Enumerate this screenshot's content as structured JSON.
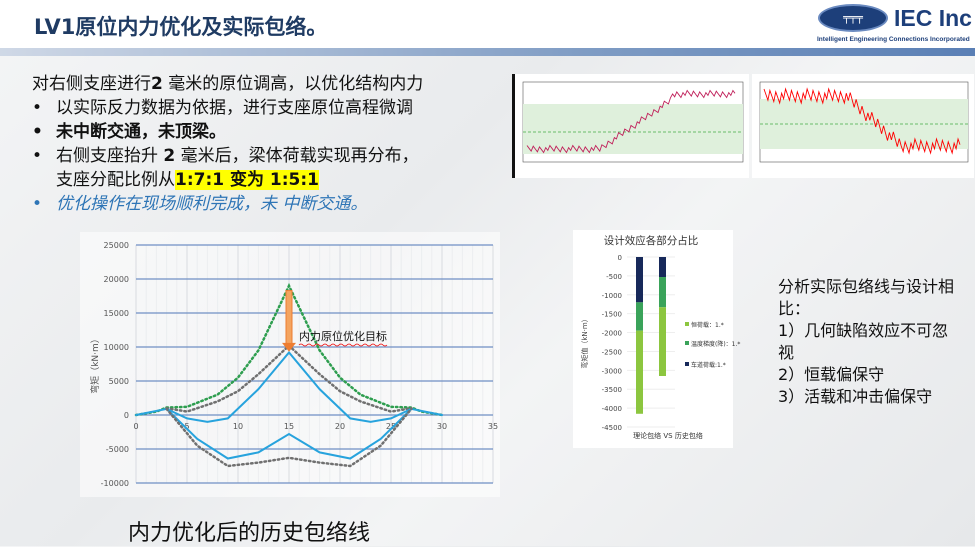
{
  "header": {
    "title": "LV1原位内力优化及实际包络。",
    "logo_text": "IEC Inc",
    "logo_sub": "Intelligent Engineering Connections Incorporated"
  },
  "body": {
    "lead_a": "对右侧支座进行",
    "lead_b": "2",
    "lead_c": " 毫米的原位调高，以优化结构内力",
    "b1": "以实际反力数据为依据，进行支座原位高程微调",
    "b2": "未中断交通，未顶梁。",
    "b3a": "右侧支座抬升 ",
    "b3b": "2",
    "b3c": " 毫米后，梁体荷载实现再分布，",
    "b3d": "支座分配比例从",
    "b3hl": "1:7:1 变为 1:5:1",
    "b4": "优化操作在现场顺利完成，未 中断交通。"
  },
  "right": {
    "l1": "分析实际包络线与设计相比：",
    "l2": "1）几何缺陷效应不可忽视",
    "l3": "2）恒载偏保守",
    "l4": "3）活载和冲击偏保守"
  },
  "caption": "内力优化后的历史包络线",
  "chart_data": [
    {
      "type": "line",
      "ylabel": "弯矩（kN·m）",
      "xlim": [
        0,
        35
      ],
      "ylim": [
        -10000,
        25000
      ],
      "xticks": [
        "0",
        "5",
        "10",
        "15",
        "20",
        "25",
        "30",
        "35"
      ],
      "yticks": [
        "25000",
        "20000",
        "15000",
        "10000",
        "5000",
        "0",
        "-5000",
        "-10000"
      ],
      "annotation": "内力原位优化目标",
      "grid": true,
      "series": [
        {
          "style": "dotted",
          "color": "#2e9e4f",
          "points": [
            [
              0,
              0
            ],
            [
              2,
              500
            ],
            [
              3,
              1100
            ],
            [
              5,
              1200
            ],
            [
              8,
              3000
            ],
            [
              10,
              5500
            ],
            [
              12,
              9500
            ],
            [
              15,
              19000
            ],
            [
              18,
              9500
            ],
            [
              20,
              5500
            ],
            [
              22,
              3000
            ],
            [
              25,
              1200
            ],
            [
              27,
              1100
            ],
            [
              28,
              500
            ],
            [
              30,
              0
            ]
          ]
        },
        {
          "style": "dotted",
          "color": "#707070",
          "points": [
            [
              3,
              1000
            ],
            [
              5,
              500
            ],
            [
              8,
              2000
            ],
            [
              10,
              3500
            ],
            [
              12,
              6000
            ],
            [
              15,
              10200
            ],
            [
              18,
              6000
            ],
            [
              20,
              3500
            ],
            [
              22,
              2000
            ],
            [
              25,
              500
            ],
            [
              27,
              1000
            ]
          ]
        },
        {
          "style": "solid",
          "color": "#27a3dd",
          "points": [
            [
              0,
              0
            ],
            [
              3,
              900
            ],
            [
              5,
              -500
            ],
            [
              7,
              -1000
            ],
            [
              9,
              -500
            ],
            [
              12,
              3800
            ],
            [
              15,
              9200
            ],
            [
              18,
              3800
            ],
            [
              21,
              -500
            ],
            [
              23,
              -1000
            ],
            [
              25,
              -500
            ],
            [
              27,
              900
            ],
            [
              30,
              0
            ]
          ]
        },
        {
          "style": "solid",
          "color": "#27a3dd",
          "points": [
            [
              3,
              900
            ],
            [
              6,
              -3500
            ],
            [
              9,
              -6400
            ],
            [
              12,
              -5500
            ],
            [
              15,
              -2800
            ],
            [
              18,
              -5500
            ],
            [
              21,
              -6400
            ],
            [
              24,
              -3500
            ],
            [
              27,
              900
            ]
          ]
        },
        {
          "style": "dotted",
          "color": "#707070",
          "points": [
            [
              3,
              900
            ],
            [
              6,
              -4500
            ],
            [
              9,
              -7500
            ],
            [
              12,
              -7000
            ],
            [
              15,
              -6300
            ],
            [
              18,
              -7000
            ],
            [
              21,
              -7500
            ],
            [
              24,
              -4500
            ],
            [
              27,
              900
            ]
          ]
        }
      ]
    },
    {
      "type": "bar",
      "title": "设计效应各部分占比",
      "ylabel": "弯矩值（kN·m）",
      "xlabel": "理论包络 VS 历史包络",
      "ylim": [
        -4500,
        0
      ],
      "yticks": [
        "0",
        "-500",
        "-1000",
        "-1500",
        "-2000",
        "-2500",
        "-3000",
        "-3500",
        "-4000",
        "-4500"
      ],
      "categories": [
        "理论包络",
        "历史包络"
      ],
      "series": [
        {
          "name": "车道荷载:1.*",
          "color": "#17295a",
          "values": [
            -1200,
            -530
          ]
        },
        {
          "name": "温度梯度(降)：1.*",
          "color": "#3aa35a",
          "values": [
            -750,
            -800
          ]
        },
        {
          "name": "恒荷载：1.*",
          "color": "#8cc63f",
          "values": [
            -2200,
            -1820
          ]
        }
      ]
    }
  ]
}
